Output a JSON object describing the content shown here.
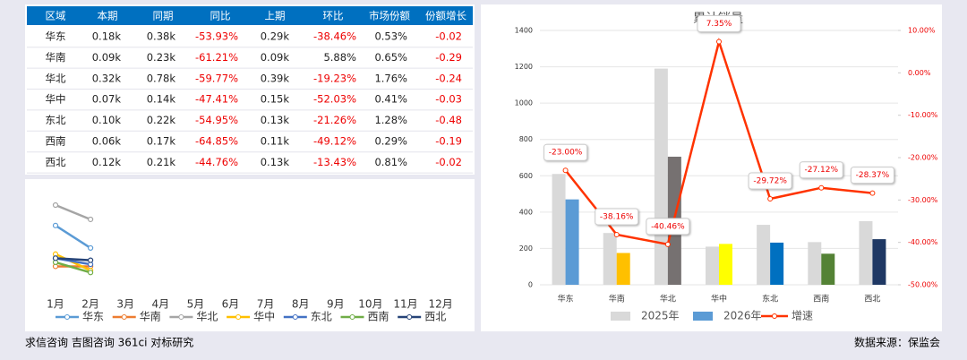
{
  "table": {
    "header": [
      "区域",
      "本期",
      "同期",
      "同比",
      "上期",
      "环比",
      "市场份额",
      "份额增长"
    ],
    "rows": [
      [
        "华东",
        "0.18k",
        "0.38k",
        "-53.93%",
        "0.29k",
        "-38.46%",
        "0.53%",
        "-0.02"
      ],
      [
        "华南",
        "0.09k",
        "0.23k",
        "-61.21%",
        "0.09k",
        "5.88%",
        "0.65%",
        "-0.29"
      ],
      [
        "华北",
        "0.32k",
        "0.78k",
        "-59.77%",
        "0.39k",
        "-19.23%",
        "1.76%",
        "-0.24"
      ],
      [
        "华中",
        "0.07k",
        "0.14k",
        "-47.41%",
        "0.15k",
        "-52.03%",
        "0.41%",
        "-0.03"
      ],
      [
        "东北",
        "0.10k",
        "0.22k",
        "-54.95%",
        "0.13k",
        "-21.26%",
        "1.28%",
        "-0.48"
      ],
      [
        "西南",
        "0.06k",
        "0.17k",
        "-64.85%",
        "0.11k",
        "-49.12%",
        "0.29%",
        "-0.19"
      ],
      [
        "西北",
        "0.12k",
        "0.21k",
        "-44.76%",
        "0.13k",
        "-13.43%",
        "0.81%",
        "-0.02"
      ]
    ]
  },
  "chart_data": [
    {
      "type": "line",
      "categories": [
        "1月",
        "2月",
        "3月",
        "4月",
        "5月",
        "6月",
        "7月",
        "8月",
        "9月",
        "10月",
        "11月",
        "12月"
      ],
      "series": [
        {
          "name": "华东",
          "color": "#5b9bd5",
          "values": [
            0.29,
            0.18,
            null,
            null,
            null,
            null,
            null,
            null,
            null,
            null,
            null,
            null
          ]
        },
        {
          "name": "华南",
          "color": "#ed7d31",
          "values": [
            0.09,
            0.09,
            null,
            null,
            null,
            null,
            null,
            null,
            null,
            null,
            null,
            null
          ]
        },
        {
          "name": "华北",
          "color": "#a5a5a5",
          "values": [
            0.39,
            0.32,
            null,
            null,
            null,
            null,
            null,
            null,
            null,
            null,
            null,
            null
          ]
        },
        {
          "name": "华中",
          "color": "#ffc000",
          "values": [
            0.15,
            0.07,
            null,
            null,
            null,
            null,
            null,
            null,
            null,
            null,
            null,
            null
          ]
        },
        {
          "name": "东北",
          "color": "#4472c4",
          "values": [
            0.13,
            0.1,
            null,
            null,
            null,
            null,
            null,
            null,
            null,
            null,
            null,
            null
          ]
        },
        {
          "name": "西南",
          "color": "#70ad47",
          "values": [
            0.11,
            0.06,
            null,
            null,
            null,
            null,
            null,
            null,
            null,
            null,
            null,
            null
          ]
        },
        {
          "name": "西北",
          "color": "#264478",
          "values": [
            0.13,
            0.12,
            null,
            null,
            null,
            null,
            null,
            null,
            null,
            null,
            null,
            null
          ]
        }
      ]
    },
    {
      "type": "bar",
      "title": "累计销量",
      "categories": [
        "华东",
        "华南",
        "华北",
        "华中",
        "东北",
        "西南",
        "西北"
      ],
      "series": [
        {
          "name": "2025年",
          "color": "#d9d9d9",
          "values": [
            610,
            285,
            1190,
            210,
            330,
            235,
            350
          ]
        },
        {
          "name": "2026年",
          "color": "#5b9bd5",
          "colors": [
            "#5b9bd5",
            "#ffc000",
            "#767171",
            "#ffff00",
            "#0070c0",
            "#548235",
            "#1f3864"
          ],
          "values": [
            470,
            175,
            705,
            225,
            232,
            171,
            251
          ]
        },
        {
          "name": "增速",
          "type": "line",
          "axis": "y2",
          "color": "#ff3300",
          "values": [
            -23.0,
            -38.16,
            -40.46,
            7.35,
            -29.72,
            -27.12,
            -28.37
          ],
          "value_labels": [
            "-23.00%",
            "-38.16%",
            "-40.46%",
            "7.35%",
            "-29.72%",
            "-27.12%",
            "-28.37%"
          ]
        }
      ],
      "ylim": [
        0,
        1400
      ],
      "yticks": [
        0,
        200,
        400,
        600,
        800,
        1000,
        1200,
        1400
      ],
      "y2lim": [
        -50,
        10
      ],
      "y2ticks": [
        {
          "value": -50,
          "label": "-50.00%"
        },
        {
          "value": -40,
          "label": "-40.00%"
        },
        {
          "value": -30,
          "label": "-30.00%"
        },
        {
          "value": -20,
          "label": "-20.00%"
        },
        {
          "value": -10,
          "label": "-10.00%"
        },
        {
          "value": 0,
          "label": "0.00%"
        },
        {
          "value": 10,
          "label": "10.00%"
        }
      ],
      "grid": true
    }
  ],
  "footer": {
    "left": "求信咨询 吉图咨询 361ci 对标研究",
    "right": "数据来源：保监会"
  }
}
